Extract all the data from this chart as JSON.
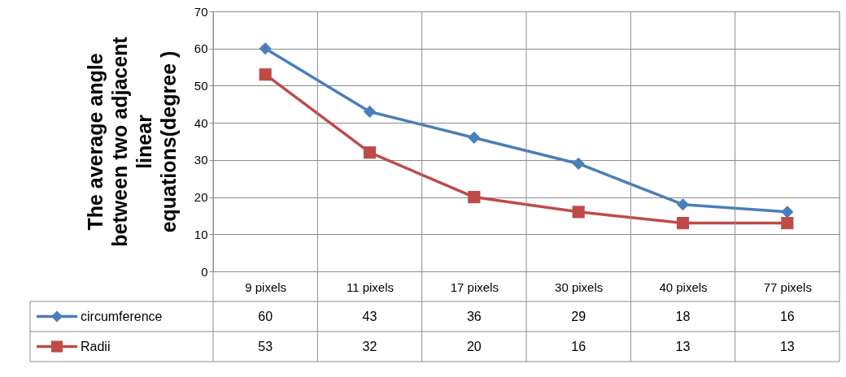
{
  "chart_data": {
    "type": "line",
    "ylabel": "The average angle between two adjacent linear equations(degree )",
    "categories": [
      "9 pixels",
      "11 pixels",
      "17 pixels",
      "30 pixels",
      "40 pixels",
      "77 pixels"
    ],
    "series": [
      {
        "name": "circumference",
        "color": "#4a7ebb",
        "marker": "diamond",
        "values": [
          60,
          43,
          36,
          29,
          18,
          16
        ]
      },
      {
        "name": "Radii",
        "color": "#be4b48",
        "marker": "square",
        "values": [
          53,
          32,
          20,
          16,
          13,
          13
        ]
      }
    ],
    "ylim": [
      0,
      70
    ],
    "yticks": [
      0,
      10,
      20,
      30,
      40,
      50,
      60,
      70
    ],
    "grid": true,
    "data_labels": true,
    "legend": "bottom left",
    "line_style": "solid"
  }
}
